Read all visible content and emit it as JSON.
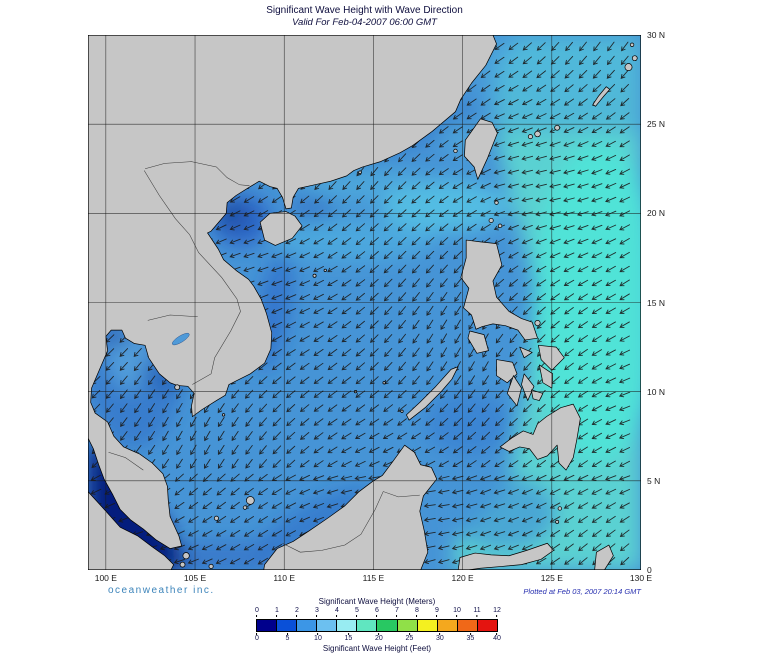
{
  "header": {
    "title": "Significant Wave Height with Wave Direction",
    "subtitle": "Valid For Feb-04-2007 06:00 GMT"
  },
  "map": {
    "x_axis_ticks": [
      "100 E",
      "105 E",
      "110 E",
      "115 E",
      "120 E",
      "125 E",
      "130 E"
    ],
    "x_axis_values": [
      100,
      105,
      110,
      115,
      120,
      125,
      130
    ],
    "y_axis_ticks": [
      "30 N",
      "25 N",
      "20 N",
      "15 N",
      "10 N",
      "5 N",
      "0"
    ],
    "y_axis_values": [
      30,
      25,
      20,
      15,
      10,
      5,
      0
    ],
    "extent": {
      "lon_min": 99,
      "lon_max": 130,
      "lat_min": 0,
      "lat_max": 30
    },
    "arrow": {
      "spacing_deg": 0.78,
      "color": "#1b1b1b"
    },
    "ocean_base_color": "#4694d6",
    "land_color": "#c6c6c6"
  },
  "legend": {
    "meters_label": "Significant Wave Height (Meters)",
    "feet_label": "Significant Wave Height (Feet)",
    "meters_ticks": [
      0,
      1,
      2,
      3,
      4,
      5,
      6,
      7,
      8,
      9,
      10,
      11,
      12
    ],
    "feet_ticks": [
      0,
      5,
      10,
      15,
      20,
      25,
      30,
      35,
      40
    ],
    "colors": [
      "#00008c",
      "#0a50d8",
      "#3c96e6",
      "#6cc0f0",
      "#98ecf2",
      "#60e6c0",
      "#28c862",
      "#90e048",
      "#f4f020",
      "#f4a81e",
      "#f06818",
      "#e41410"
    ]
  },
  "footer": {
    "brand": "oceanweather inc.",
    "plotted_at": "Plotted at Feb 03, 2007 20:14 GMT"
  },
  "chart_data": {
    "type": "heatmap",
    "title": "Significant Wave Height with Wave Direction",
    "valid_time": "Feb-04-2007 06:00 GMT",
    "region": {
      "lon_min_deg_e": 99,
      "lon_max_deg_e": 130,
      "lat_min_deg_n": 0,
      "lat_max_deg_n": 30
    },
    "units": [
      "Meters",
      "Feet"
    ],
    "scale_meters": [
      0,
      1,
      2,
      3,
      4,
      5,
      6,
      7,
      8,
      9,
      10,
      11,
      12
    ],
    "scale_feet": [
      0,
      5,
      10,
      15,
      20,
      25,
      30,
      35,
      40
    ],
    "observed_range_m": [
      0,
      4
    ],
    "overlay": "wave direction arrows pointing predominantly southwest"
  }
}
